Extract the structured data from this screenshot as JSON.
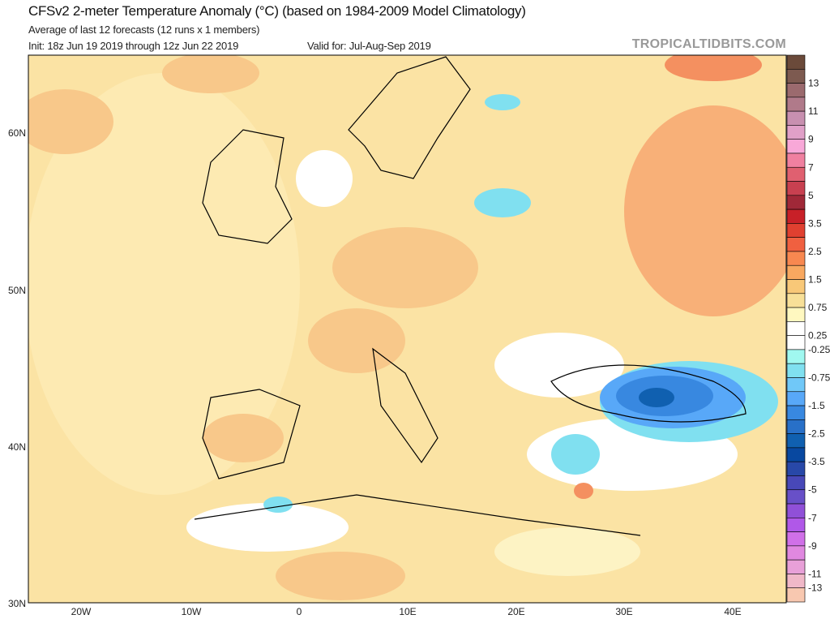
{
  "header": {
    "title": "CFSv2 2-meter Temperature Anomaly (°C) (based on 1984-2009 Model Climatology)",
    "subtitle": "Average of last 12 forecasts (12 runs x 1 members)",
    "init": "Init: 18z Jun 19 2019 through 12z Jun 22 2019",
    "valid": "Valid for: Jul-Aug-Sep 2019",
    "brand": "TROPICALTIDBITS.COM"
  },
  "axes": {
    "lon_labels": [
      "20W",
      "10W",
      "0",
      "10E",
      "20E",
      "30E",
      "40E"
    ],
    "lat_labels": [
      "60N",
      "50N",
      "40N",
      "30N"
    ]
  },
  "colorbar": {
    "labels": [
      "13",
      "11",
      "9",
      "7",
      "5",
      "3.5",
      "2.5",
      "1.5",
      "0.75",
      "0.25",
      "-0.25",
      "-0.75",
      "-1.5",
      "-2.5",
      "-3.5",
      "-5",
      "-7",
      "-9",
      "-11",
      "-13"
    ],
    "colors": [
      "#6b4a3a",
      "#7d5a50",
      "#9b6a6e",
      "#b07a8a",
      "#c890b0",
      "#e0a0c8",
      "#f8a8d8",
      "#f080a0",
      "#e06070",
      "#c84050",
      "#a02838",
      "#c82028",
      "#e04030",
      "#f06040",
      "#f88850",
      "#f8a860",
      "#f8c878",
      "#f8e098",
      "#fff8c0",
      "#ffffff",
      "#ffffff",
      "#a0f8f0",
      "#80e0f0",
      "#70c8f8",
      "#58a8f8",
      "#3888e0",
      "#2870c8",
      "#1060b0",
      "#0848a0",
      "#2848a8",
      "#4848b8",
      "#6850c8",
      "#9050d8",
      "#b058e8",
      "#d070e8",
      "#e088e0",
      "#e8a0d8",
      "#f0b8c8",
      "#f8c8b0"
    ]
  }
}
